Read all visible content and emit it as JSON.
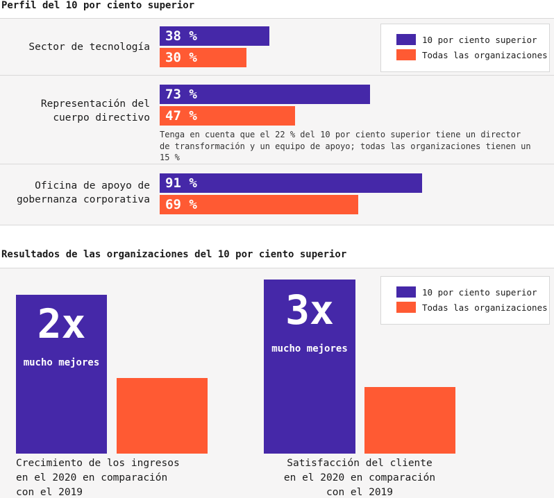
{
  "section1": {
    "title": "Perfil del 10 por ciento superior",
    "rows": [
      {
        "label_lines": [
          "Sector de tecnología"
        ],
        "top": "38 %",
        "all": "30 %"
      },
      {
        "label_lines": [
          "Representación del",
          "cuerpo directivo"
        ],
        "top": "73 %",
        "all": "47 %"
      },
      {
        "label_lines": [
          "Oficina de apoyo de",
          "gobernanza corporativa"
        ],
        "top": "91 %",
        "all": "69 %"
      }
    ],
    "note": "Tenga en cuenta que el 22 % del 10 por ciento superior tiene un director de transformación y un equipo de apoyo; todas las organizaciones tienen un 15 %"
  },
  "section2": {
    "title": "Resultados de las organizaciones del 10 por ciento superior",
    "groups": [
      {
        "big": "2x",
        "sub": "mucho mejores",
        "caption_lines": [
          "Crecimiento de los ingresos",
          "en el 2020 en comparación",
          "con el 2019"
        ]
      },
      {
        "big": "3x",
        "sub": "mucho mejores",
        "caption_lines": [
          "Satisfacción del cliente",
          "en el 2020 en comparación",
          "con el 2019"
        ]
      }
    ]
  },
  "legend": {
    "top_label": "10 por ciento superior",
    "all_label": "Todas las organizaciones"
  },
  "colors": {
    "top": "#4528a8",
    "all": "#ff5a33"
  },
  "chart_data": [
    {
      "type": "bar",
      "title": "Perfil del 10 por ciento superior",
      "categories": [
        "Sector de tecnología",
        "Representación del cuerpo directivo",
        "Oficina de apoyo de gobernanza corporativa"
      ],
      "series": [
        {
          "name": "10 por ciento superior",
          "values": [
            38,
            73,
            91
          ]
        },
        {
          "name": "Todas las organizaciones",
          "values": [
            30,
            47,
            69
          ]
        }
      ],
      "orientation": "horizontal",
      "unit": "%",
      "xlim": [
        0,
        100
      ],
      "legend": "top-right"
    },
    {
      "type": "bar",
      "title": "Resultados de las organizaciones del 10 por ciento superior",
      "categories": [
        "Crecimiento de los ingresos en el 2020 en comparación con el 2019",
        "Satisfacción del cliente en el 2020 en comparación con el 2019"
      ],
      "series": [
        {
          "name": "10 por ciento superior",
          "values": [
            2,
            3
          ]
        },
        {
          "name": "Todas las organizaciones",
          "values": [
            1,
            1
          ]
        }
      ],
      "ratio_labels": [
        "2x",
        "3x"
      ],
      "legend": "top-right"
    }
  ]
}
